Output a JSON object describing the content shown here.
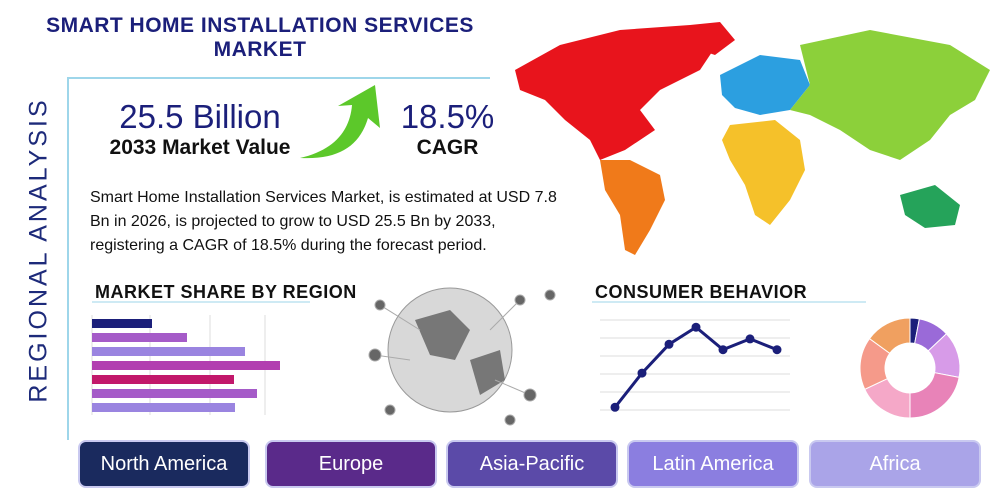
{
  "header": {
    "title": "SMART HOME INSTALLATION SERVICES MARKET"
  },
  "side_label": "REGIONAL ANALYSIS",
  "stats": [
    {
      "value": "25.5 Billion",
      "label": "2033 Market Value"
    },
    {
      "value": "18.5%",
      "label": "CAGR"
    }
  ],
  "description": "Smart Home Installation Services Market, is estimated at USD 7.8 Bn in 2026, is projected to grow to USD 25.5 Bn by 2033, registering a CAGR of 18.5% during the forecast period.",
  "market_share_chart": {
    "type": "bar",
    "title": "MARKET SHARE BY REGION",
    "xlim": [
      0,
      200
    ],
    "values": [
      60,
      95,
      153,
      188,
      142,
      165,
      143
    ],
    "colors": [
      "#1b1f7a",
      "#a55bc8",
      "#9a84e0",
      "#b23fb0",
      "#c2186b",
      "#a55bc8",
      "#9a84e0"
    ]
  },
  "consumer_chart": {
    "type": "line",
    "title": "CONSUMER BEHAVIOR",
    "ylim": [
      0,
      100
    ],
    "values": [
      3,
      41,
      73,
      92,
      67,
      79,
      67
    ],
    "color": "#1b1f7a"
  },
  "donut_chart": {
    "type": "pie",
    "values": [
      3,
      10,
      15,
      22,
      18,
      17,
      15
    ],
    "colors": [
      "#1b1f7a",
      "#9a6ad8",
      "#d79be8",
      "#e883b8",
      "#f5a8c8",
      "#f59a8a",
      "#f0a060"
    ]
  },
  "regions": [
    "North America",
    "Europe",
    "Asia-Pacific",
    "Latin America",
    "Africa"
  ]
}
